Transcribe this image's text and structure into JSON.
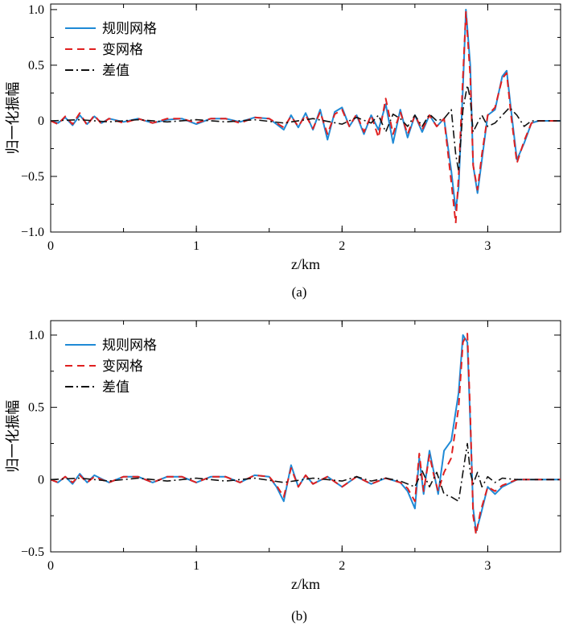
{
  "chart_data": [
    {
      "type": "line",
      "caption": "(a)",
      "xlabel": "z/km",
      "ylabel": "归一化振幅",
      "xlim": [
        0,
        3.5
      ],
      "ylim": [
        -1.0,
        1.05
      ],
      "xticks": [
        0,
        1,
        2,
        3
      ],
      "xtick_labels": [
        "0",
        "1",
        "2",
        "3"
      ],
      "yticks": [
        -1.0,
        -0.5,
        0,
        0.5,
        1.0
      ],
      "ytick_labels": [
        "−1.0",
        "−0.5",
        "0",
        "0.5",
        "1.0"
      ],
      "legend_position": "top-left",
      "series": [
        {
          "name": "规则网格",
          "color": "#1f8ad6",
          "style": "solid",
          "x": [
            0,
            0.05,
            0.1,
            0.15,
            0.2,
            0.25,
            0.3,
            0.35,
            0.4,
            0.5,
            0.6,
            0.7,
            0.8,
            0.9,
            1.0,
            1.1,
            1.2,
            1.3,
            1.4,
            1.5,
            1.6,
            1.65,
            1.7,
            1.75,
            1.8,
            1.85,
            1.9,
            1.95,
            2.0,
            2.05,
            2.1,
            2.15,
            2.2,
            2.25,
            2.3,
            2.35,
            2.4,
            2.45,
            2.5,
            2.55,
            2.6,
            2.65,
            2.7,
            2.75,
            2.78,
            2.8,
            2.83,
            2.85,
            2.88,
            2.9,
            2.93,
            2.96,
            3.0,
            3.05,
            3.1,
            3.13,
            3.16,
            3.2,
            3.25,
            3.3,
            3.35,
            3.4,
            3.5
          ],
          "y": [
            0,
            -0.02,
            0.03,
            -0.04,
            0.05,
            -0.03,
            0.04,
            -0.02,
            0.02,
            -0.01,
            0.02,
            -0.02,
            0.01,
            0.02,
            -0.03,
            0.02,
            0.02,
            -0.01,
            0.03,
            0.02,
            -0.08,
            0.05,
            -0.06,
            0.07,
            -0.08,
            0.1,
            -0.17,
            0.08,
            0.12,
            -0.05,
            0.05,
            -0.12,
            0.05,
            -0.08,
            0.15,
            -0.2,
            0.1,
            -0.15,
            0.05,
            -0.1,
            0.05,
            -0.05,
            0.02,
            -0.45,
            -0.8,
            -0.6,
            0.3,
            1.0,
            0.5,
            -0.4,
            -0.65,
            -0.35,
            0.05,
            0.1,
            0.4,
            0.45,
            0.1,
            -0.35,
            -0.2,
            -0.02,
            0,
            0,
            0
          ]
        },
        {
          "name": "变网格",
          "color": "#e02020",
          "style": "dashed",
          "x": [
            0,
            0.05,
            0.1,
            0.15,
            0.2,
            0.25,
            0.3,
            0.35,
            0.4,
            0.5,
            0.6,
            0.7,
            0.8,
            0.9,
            1.0,
            1.1,
            1.2,
            1.3,
            1.4,
            1.5,
            1.6,
            1.65,
            1.7,
            1.75,
            1.8,
            1.85,
            1.9,
            1.95,
            2.0,
            2.05,
            2.1,
            2.15,
            2.2,
            2.25,
            2.3,
            2.35,
            2.4,
            2.45,
            2.5,
            2.55,
            2.6,
            2.65,
            2.7,
            2.75,
            2.78,
            2.8,
            2.83,
            2.85,
            2.88,
            2.9,
            2.93,
            2.96,
            3.0,
            3.05,
            3.1,
            3.13,
            3.16,
            3.2,
            3.25,
            3.3,
            3.35,
            3.4,
            3.5
          ],
          "y": [
            0,
            -0.03,
            0.04,
            -0.03,
            0.07,
            -0.04,
            0.05,
            -0.03,
            0.02,
            -0.02,
            0.02,
            -0.02,
            0.02,
            0.02,
            -0.02,
            0.02,
            0.02,
            -0.02,
            0.03,
            0.02,
            -0.06,
            0.04,
            -0.05,
            0.05,
            -0.07,
            0.08,
            -0.12,
            0.06,
            0.1,
            -0.05,
            0.06,
            -0.1,
            0.05,
            -0.15,
            0.2,
            -0.12,
            0.08,
            -0.12,
            0.05,
            -0.08,
            0.05,
            -0.05,
            0.02,
            -0.55,
            -0.92,
            -0.5,
            0.4,
            0.98,
            0.4,
            -0.4,
            -0.62,
            -0.3,
            0.05,
            0.12,
            0.38,
            0.43,
            0.05,
            -0.38,
            -0.18,
            -0.02,
            0,
            0,
            0
          ]
        },
        {
          "name": "差值",
          "color": "#111111",
          "style": "dashdot",
          "x": [
            0,
            0.2,
            0.4,
            0.6,
            0.8,
            1.0,
            1.2,
            1.4,
            1.6,
            1.8,
            2.0,
            2.1,
            2.2,
            2.25,
            2.3,
            2.35,
            2.4,
            2.45,
            2.5,
            2.55,
            2.6,
            2.65,
            2.7,
            2.75,
            2.78,
            2.8,
            2.83,
            2.86,
            2.88,
            2.9,
            2.93,
            2.96,
            3.0,
            3.05,
            3.1,
            3.15,
            3.2,
            3.25,
            3.3,
            3.4,
            3.5
          ],
          "y": [
            0,
            0.01,
            -0.01,
            0.01,
            -0.01,
            0.01,
            -0.01,
            0.01,
            -0.02,
            0.02,
            -0.03,
            0.03,
            -0.02,
            0.05,
            -0.1,
            0.06,
            0.02,
            -0.05,
            0.05,
            -0.05,
            0.06,
            0,
            0.02,
            0.1,
            -0.3,
            -0.45,
            0.1,
            0.32,
            0.2,
            -0.1,
            -0.02,
            0.05,
            -0.05,
            -0.02,
            0.05,
            0.12,
            0.05,
            -0.05,
            0,
            0,
            0
          ]
        }
      ]
    },
    {
      "type": "line",
      "caption": "(b)",
      "xlabel": "z/km",
      "ylabel": "归一化振幅",
      "xlim": [
        0,
        3.5
      ],
      "ylim": [
        -0.5,
        1.1
      ],
      "xticks": [
        0,
        1,
        2,
        3
      ],
      "xtick_labels": [
        "0",
        "1",
        "2",
        "3"
      ],
      "yticks": [
        -0.5,
        0,
        0.5,
        1.0
      ],
      "ytick_labels": [
        "−0.5",
        "0",
        "0.5",
        "1.0"
      ],
      "legend_position": "top-left",
      "series": [
        {
          "name": "规则网格",
          "color": "#1f8ad6",
          "style": "solid",
          "x": [
            0,
            0.05,
            0.1,
            0.15,
            0.2,
            0.25,
            0.3,
            0.4,
            0.5,
            0.6,
            0.7,
            0.8,
            0.9,
            1.0,
            1.1,
            1.2,
            1.3,
            1.4,
            1.5,
            1.55,
            1.6,
            1.65,
            1.7,
            1.75,
            1.8,
            1.9,
            2.0,
            2.1,
            2.2,
            2.3,
            2.4,
            2.45,
            2.5,
            2.53,
            2.56,
            2.6,
            2.63,
            2.66,
            2.7,
            2.75,
            2.8,
            2.83,
            2.86,
            2.88,
            2.9,
            2.92,
            2.95,
            3.0,
            3.05,
            3.1,
            3.2,
            3.3,
            3.5
          ],
          "y": [
            0,
            -0.02,
            0.02,
            -0.03,
            0.04,
            -0.02,
            0.03,
            -0.02,
            0.02,
            0.02,
            -0.02,
            0.02,
            0.02,
            -0.02,
            0.02,
            0.02,
            -0.02,
            0.03,
            0.02,
            -0.05,
            -0.15,
            0.1,
            -0.05,
            0.03,
            -0.03,
            0.02,
            -0.05,
            0.02,
            -0.03,
            0.01,
            -0.02,
            -0.08,
            -0.2,
            0.15,
            -0.1,
            0.2,
            0.05,
            -0.1,
            0.2,
            0.27,
            0.6,
            1.0,
            0.95,
            0.4,
            -0.2,
            -0.36,
            -0.25,
            -0.05,
            -0.1,
            -0.05,
            0,
            0,
            0
          ]
        },
        {
          "name": "变网格",
          "color": "#e02020",
          "style": "dashed",
          "x": [
            0,
            0.05,
            0.1,
            0.15,
            0.2,
            0.25,
            0.3,
            0.4,
            0.5,
            0.6,
            0.7,
            0.8,
            0.9,
            1.0,
            1.1,
            1.2,
            1.3,
            1.4,
            1.5,
            1.55,
            1.6,
            1.65,
            1.7,
            1.75,
            1.8,
            1.9,
            2.0,
            2.1,
            2.2,
            2.3,
            2.4,
            2.45,
            2.5,
            2.53,
            2.56,
            2.6,
            2.63,
            2.66,
            2.7,
            2.75,
            2.8,
            2.83,
            2.86,
            2.88,
            2.9,
            2.92,
            2.95,
            3.0,
            3.05,
            3.1,
            3.2,
            3.3,
            3.5
          ],
          "y": [
            0,
            -0.02,
            0.02,
            -0.02,
            0.03,
            -0.02,
            0.02,
            -0.02,
            0.02,
            0.02,
            -0.02,
            0.02,
            0.02,
            -0.02,
            0.02,
            0.02,
            -0.02,
            0.03,
            0.02,
            -0.04,
            -0.12,
            0.08,
            -0.05,
            0.03,
            -0.03,
            0.02,
            -0.05,
            0.02,
            -0.03,
            0.01,
            -0.02,
            -0.06,
            -0.15,
            0.18,
            -0.08,
            0.17,
            0.03,
            -0.08,
            0.05,
            0.15,
            0.5,
            0.95,
            1.01,
            0.45,
            -0.25,
            -0.38,
            -0.22,
            -0.05,
            -0.08,
            -0.04,
            0,
            0,
            0
          ]
        },
        {
          "name": "差值",
          "color": "#111111",
          "style": "dashdot",
          "x": [
            0,
            0.2,
            0.4,
            0.6,
            0.8,
            1.0,
            1.2,
            1.4,
            1.6,
            1.8,
            2.0,
            2.1,
            2.2,
            2.3,
            2.4,
            2.5,
            2.55,
            2.6,
            2.65,
            2.7,
            2.75,
            2.8,
            2.83,
            2.86,
            2.88,
            2.9,
            2.93,
            2.96,
            3.0,
            3.05,
            3.1,
            3.2,
            3.5
          ],
          "y": [
            0,
            0.01,
            -0.01,
            0.01,
            -0.01,
            0.01,
            -0.01,
            0.01,
            -0.02,
            0.01,
            -0.01,
            0.02,
            -0.01,
            0.01,
            -0.01,
            -0.05,
            0.06,
            -0.05,
            0.05,
            -0.1,
            -0.12,
            -0.15,
            0.05,
            0.25,
            0.05,
            -0.03,
            0.05,
            -0.05,
            0.02,
            -0.02,
            0.01,
            0,
            0
          ]
        }
      ]
    }
  ]
}
